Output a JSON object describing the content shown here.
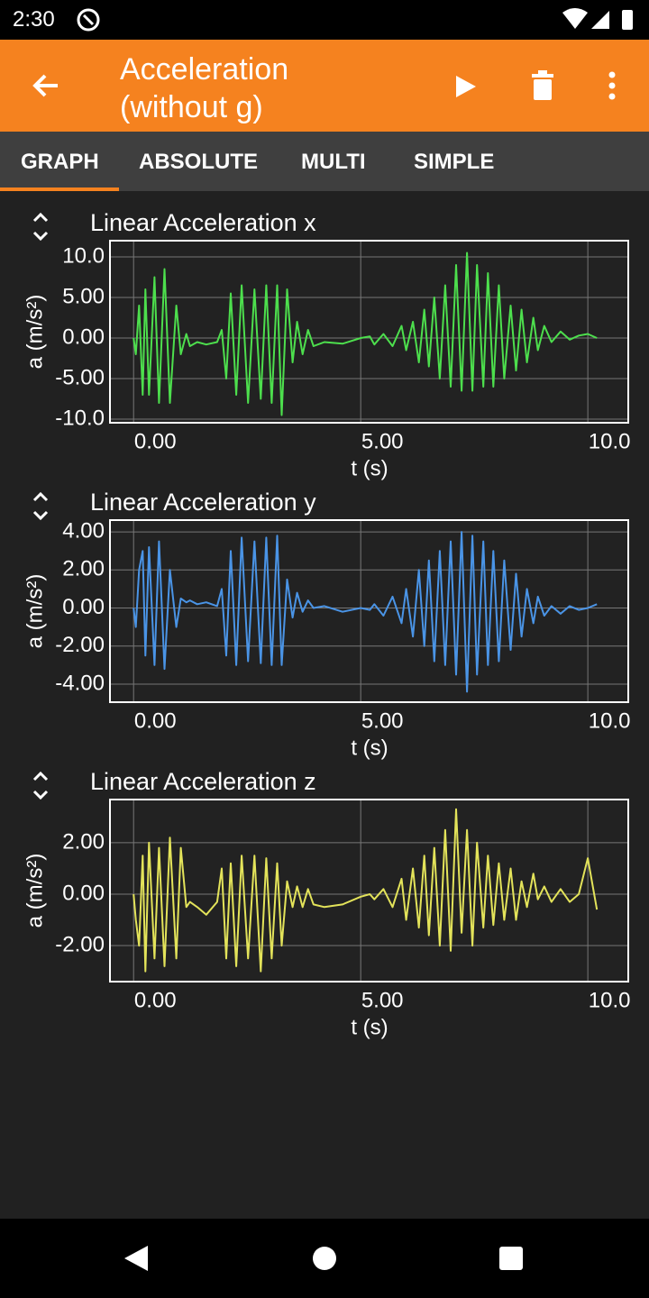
{
  "status_bar": {
    "time": "2:30"
  },
  "app_bar": {
    "title": "Acceleration (without g)"
  },
  "tabs": [
    "GRAPH",
    "ABSOLUTE",
    "MULTI",
    "SIMPLE"
  ],
  "chart_data": [
    {
      "type": "line",
      "title": "Linear Acceleration x",
      "x_label": "t (s)",
      "y_label": "a (m/s²)",
      "color": "#4ddf4d",
      "grid": true,
      "xlim": [
        -0.52,
        10.89
      ],
      "ylim": [
        -10.44,
        12
      ],
      "xticks": [
        {
          "value": 0,
          "label": "0.00"
        },
        {
          "value": 5,
          "label": "5.00"
        },
        {
          "value": 10,
          "label": "10.0"
        }
      ],
      "yticks": [
        {
          "value": 10,
          "label": "10.0"
        },
        {
          "value": 5,
          "label": "5.00"
        },
        {
          "value": 0,
          "label": "0.00"
        },
        {
          "value": -5,
          "label": "-5.00"
        },
        {
          "value": -10,
          "label": "-10.0"
        }
      ],
      "x": [
        0,
        0.05,
        0.12,
        0.2,
        0.26,
        0.34,
        0.46,
        0.56,
        0.68,
        0.8,
        0.94,
        1.04,
        1.16,
        1.24,
        1.4,
        1.6,
        1.84,
        1.94,
        2.04,
        2.14,
        2.26,
        2.38,
        2.52,
        2.66,
        2.8,
        2.92,
        3.04,
        3.16,
        3.26,
        3.38,
        3.5,
        3.6,
        3.72,
        3.84,
        3.96,
        4.2,
        4.6,
        5.0,
        5.2,
        5.3,
        5.5,
        5.7,
        5.9,
        6.0,
        6.15,
        6.28,
        6.4,
        6.5,
        6.62,
        6.74,
        6.86,
        6.98,
        7.1,
        7.22,
        7.34,
        7.46,
        7.56,
        7.7,
        7.8,
        7.92,
        8.04,
        8.16,
        8.3,
        8.42,
        8.54,
        8.66,
        8.8,
        8.9,
        9.04,
        9.2,
        9.4,
        9.6,
        9.8,
        10.0,
        10.2
      ],
      "values": [
        0,
        -2,
        4,
        -7,
        6,
        -7,
        7.5,
        -8,
        8.5,
        -8,
        4,
        -2,
        0.5,
        -1,
        -0.5,
        -0.8,
        -0.5,
        1,
        -5,
        5.5,
        -7,
        6.5,
        -8,
        6,
        -7.5,
        6.5,
        -8,
        6.5,
        -9.5,
        6,
        -3,
        2,
        -2,
        1,
        -1,
        -0.5,
        -0.7,
        0,
        0.2,
        -0.8,
        0.5,
        -1,
        1.5,
        -1.5,
        2,
        -3,
        3.5,
        -3.5,
        5,
        -5,
        6.5,
        -6,
        9,
        -6.5,
        10.5,
        -6.5,
        9,
        -6,
        8,
        -6,
        6.5,
        -5,
        4,
        -4,
        3.5,
        -3,
        2.5,
        -1.5,
        1.5,
        -0.5,
        0.8,
        -0.2,
        0.3,
        0.5,
        0
      ]
    },
    {
      "type": "line",
      "title": "Linear Acceleration y",
      "x_label": "t (s)",
      "y_label": "a (m/s²)",
      "color": "#4a94e6",
      "grid": true,
      "xlim": [
        -0.52,
        10.89
      ],
      "ylim": [
        -4.95,
        4.62
      ],
      "xticks": [
        {
          "value": 0,
          "label": "0.00"
        },
        {
          "value": 5,
          "label": "5.00"
        },
        {
          "value": 10,
          "label": "10.0"
        }
      ],
      "yticks": [
        {
          "value": 4,
          "label": "4.00"
        },
        {
          "value": 2,
          "label": "2.00"
        },
        {
          "value": 0,
          "label": "0.00"
        },
        {
          "value": -2,
          "label": "-2.00"
        },
        {
          "value": -4,
          "label": "-4.00"
        }
      ],
      "x": [
        0,
        0.05,
        0.12,
        0.2,
        0.26,
        0.34,
        0.46,
        0.56,
        0.68,
        0.8,
        0.94,
        1.04,
        1.16,
        1.24,
        1.4,
        1.6,
        1.84,
        1.94,
        2.04,
        2.14,
        2.26,
        2.38,
        2.52,
        2.66,
        2.8,
        2.92,
        3.04,
        3.16,
        3.26,
        3.38,
        3.5,
        3.6,
        3.72,
        3.84,
        3.96,
        4.2,
        4.6,
        5.0,
        5.2,
        5.3,
        5.5,
        5.7,
        5.9,
        6.0,
        6.15,
        6.28,
        6.4,
        6.5,
        6.62,
        6.74,
        6.86,
        6.98,
        7.1,
        7.22,
        7.34,
        7.46,
        7.56,
        7.7,
        7.8,
        7.92,
        8.04,
        8.16,
        8.3,
        8.42,
        8.54,
        8.66,
        8.8,
        8.9,
        9.04,
        9.2,
        9.4,
        9.6,
        9.8,
        10.0,
        10.2
      ],
      "values": [
        0,
        -1,
        2,
        3,
        -2.5,
        3.2,
        -3,
        3.5,
        -3.2,
        2,
        -1,
        0.5,
        0.3,
        0.4,
        0.2,
        0.3,
        0.1,
        1,
        -2.5,
        3,
        -3,
        3.7,
        -2.8,
        3.5,
        -2.9,
        3.7,
        -3,
        3.8,
        -3,
        1.5,
        -0.5,
        0.8,
        -0.2,
        0.4,
        0,
        0.1,
        -0.2,
        0,
        -0.1,
        0.2,
        -0.4,
        0.6,
        -0.8,
        1,
        -1.5,
        2,
        -2,
        2.5,
        -2.8,
        3,
        -3,
        3.5,
        -3.5,
        4,
        -4.4,
        3.8,
        -3.5,
        3.5,
        -3,
        3,
        -2.8,
        2.5,
        -2.2,
        1.8,
        -1.5,
        1,
        -0.8,
        0.6,
        -0.4,
        0.1,
        -0.3,
        0.1,
        -0.1,
        0,
        0.2
      ]
    },
    {
      "type": "line",
      "title": "Linear Acceleration z",
      "x_label": "t (s)",
      "y_label": "a (m/s²)",
      "color": "#e3e35a",
      "grid": true,
      "xlim": [
        -0.52,
        10.89
      ],
      "ylim": [
        -3.4,
        3.68
      ],
      "xticks": [
        {
          "value": 0,
          "label": "0.00"
        },
        {
          "value": 5,
          "label": "5.00"
        },
        {
          "value": 10,
          "label": "10.0"
        }
      ],
      "yticks": [
        {
          "value": 2,
          "label": "2.00"
        },
        {
          "value": 0,
          "label": "0.00"
        },
        {
          "value": -2,
          "label": "-2.00"
        }
      ],
      "x": [
        0,
        0.05,
        0.12,
        0.2,
        0.26,
        0.34,
        0.46,
        0.56,
        0.68,
        0.8,
        0.94,
        1.04,
        1.16,
        1.24,
        1.4,
        1.6,
        1.84,
        1.94,
        2.04,
        2.14,
        2.26,
        2.38,
        2.52,
        2.66,
        2.8,
        2.92,
        3.04,
        3.16,
        3.26,
        3.38,
        3.5,
        3.6,
        3.72,
        3.84,
        3.96,
        4.2,
        4.6,
        5.0,
        5.2,
        5.3,
        5.5,
        5.7,
        5.9,
        6.0,
        6.15,
        6.28,
        6.4,
        6.5,
        6.62,
        6.74,
        6.86,
        6.98,
        7.1,
        7.22,
        7.34,
        7.46,
        7.56,
        7.7,
        7.8,
        7.92,
        8.04,
        8.16,
        8.3,
        8.42,
        8.54,
        8.66,
        8.8,
        8.9,
        9.04,
        9.2,
        9.4,
        9.6,
        9.8,
        10.0,
        10.2
      ],
      "values": [
        0,
        -1,
        -2,
        1.5,
        -3,
        2,
        -2.5,
        1.8,
        -2.8,
        2.2,
        -2.5,
        1.8,
        -0.5,
        -0.3,
        -0.5,
        -0.8,
        -0.3,
        1,
        -2.5,
        1.2,
        -2.8,
        1.5,
        -2.5,
        1.5,
        -3,
        1.4,
        -2.5,
        1.2,
        -2,
        0.5,
        -0.5,
        0.3,
        -0.5,
        0.2,
        -0.4,
        -0.5,
        -0.4,
        -0.1,
        0,
        -0.2,
        0.2,
        -0.5,
        0.6,
        -1,
        1,
        -1.3,
        1.5,
        -1.6,
        1.8,
        -2,
        2.5,
        -2.2,
        3.3,
        -1.5,
        2.5,
        -2,
        2,
        -1.3,
        1.5,
        -1.2,
        1.2,
        -1,
        1,
        -1,
        0.5,
        -0.5,
        0.8,
        -0.2,
        0.3,
        -0.3,
        0.2,
        -0.3,
        0,
        1.4,
        -0.6
      ]
    }
  ]
}
